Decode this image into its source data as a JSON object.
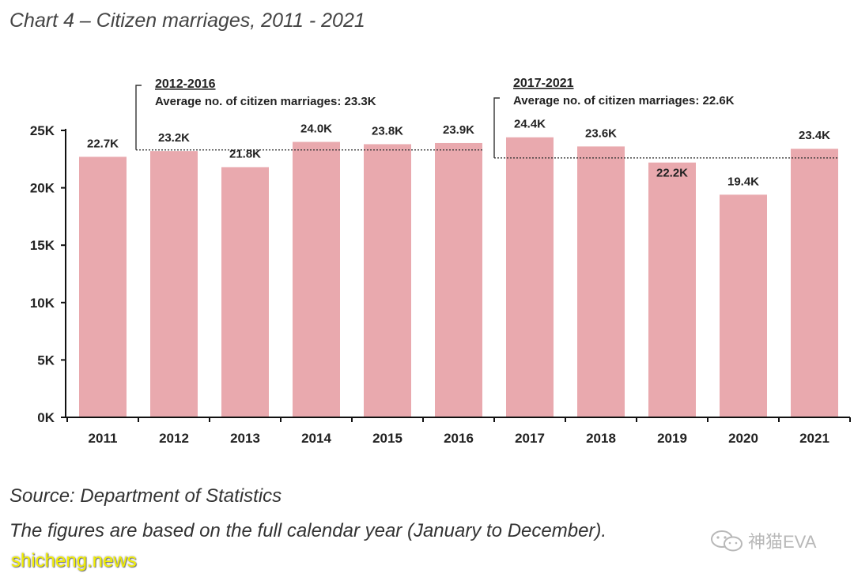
{
  "title": "Chart 4 – Citizen marriages, 2011 - 2021",
  "source_note": "Source: Department of Statistics",
  "figures_note": "The figures are based on the full calendar year (January to December).",
  "watermark_site": "shicheng.news",
  "watermark_account": "神猫EVA",
  "watermark_icon": "wechat-icon",
  "colors": {
    "bar": "#e9a9ae",
    "axis": "#111111",
    "text": "#222222",
    "site": "#f3f000"
  },
  "chart_data": {
    "type": "bar",
    "categories": [
      "2011",
      "2012",
      "2013",
      "2014",
      "2015",
      "2016",
      "2017",
      "2018",
      "2019",
      "2020",
      "2021"
    ],
    "values": [
      22.7,
      23.2,
      21.8,
      24.0,
      23.8,
      23.9,
      24.4,
      23.6,
      22.2,
      19.4,
      23.4
    ],
    "data_labels": [
      "22.7K",
      "23.2K",
      "21.8K",
      "24.0K",
      "23.8K",
      "23.9K",
      "24.4K",
      "23.6K",
      "22.2K",
      "19.4K",
      "23.4K"
    ],
    "unit": "K",
    "ylim": [
      0,
      25
    ],
    "yticks": [
      0,
      5,
      10,
      15,
      20,
      25
    ],
    "ytick_labels": [
      "0K",
      "5K",
      "10K",
      "15K",
      "20K",
      "25K"
    ],
    "grid": false,
    "annotations": [
      {
        "period": "2012-2016",
        "text": "Average no. of citizen marriages: 23.3K",
        "value": 23.3,
        "from": "2012",
        "to": "2016"
      },
      {
        "period": "2017-2021",
        "text": "Average no. of citizen marriages: 22.6K",
        "value": 22.6,
        "from": "2017",
        "to": "2021"
      }
    ]
  }
}
